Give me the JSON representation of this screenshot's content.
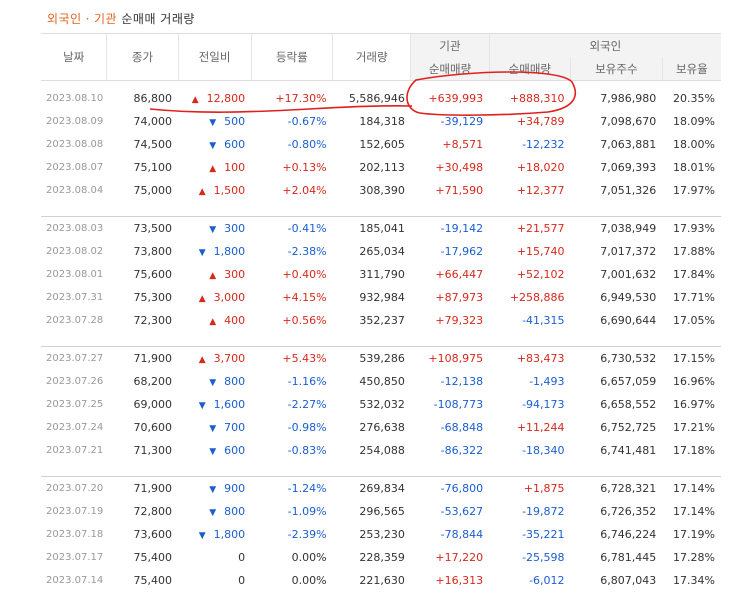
{
  "page": {
    "title_part1": "외국인",
    "title_dot": "·",
    "title_part2": "기관",
    "title_part3": "순매매 거래량"
  },
  "headers": {
    "date": "날짜",
    "close": "종가",
    "change": "전일비",
    "rate": "등락률",
    "volume": "거래량",
    "institution": "기관",
    "foreign": "외국인",
    "inst_net": "순매매량",
    "for_net": "순매매량",
    "shares_held": "보유주수",
    "hold_ratio": "보유율"
  },
  "colors": {
    "up": "#d6291c",
    "down": "#1b5ed0",
    "annotation": "#e0201c"
  },
  "groups": [
    [
      {
        "date": "2023.08.10",
        "close": "86,800",
        "dir": "up",
        "change": "12,800",
        "rate": "+17.30%",
        "volume": "5,586,946",
        "inst": "+639,993",
        "foreign": "+888,310",
        "held": "7,986,980",
        "ratio": "20.35%"
      },
      {
        "date": "2023.08.09",
        "close": "74,000",
        "dir": "down",
        "change": "500",
        "rate": "-0.67%",
        "volume": "184,318",
        "inst": "-39,129",
        "foreign": "+34,789",
        "held": "7,098,670",
        "ratio": "18.09%"
      },
      {
        "date": "2023.08.08",
        "close": "74,500",
        "dir": "down",
        "change": "600",
        "rate": "-0.80%",
        "volume": "152,605",
        "inst": "+8,571",
        "foreign": "-12,232",
        "held": "7,063,881",
        "ratio": "18.00%"
      },
      {
        "date": "2023.08.07",
        "close": "75,100",
        "dir": "up",
        "change": "100",
        "rate": "+0.13%",
        "volume": "202,113",
        "inst": "+30,498",
        "foreign": "+18,020",
        "held": "7,069,393",
        "ratio": "18.01%"
      },
      {
        "date": "2023.08.04",
        "close": "75,000",
        "dir": "up",
        "change": "1,500",
        "rate": "+2.04%",
        "volume": "308,390",
        "inst": "+71,590",
        "foreign": "+12,377",
        "held": "7,051,326",
        "ratio": "17.97%"
      }
    ],
    [
      {
        "date": "2023.08.03",
        "close": "73,500",
        "dir": "down",
        "change": "300",
        "rate": "-0.41%",
        "volume": "185,041",
        "inst": "-19,142",
        "foreign": "+21,577",
        "held": "7,038,949",
        "ratio": "17.93%"
      },
      {
        "date": "2023.08.02",
        "close": "73,800",
        "dir": "down",
        "change": "1,800",
        "rate": "-2.38%",
        "volume": "265,034",
        "inst": "-17,962",
        "foreign": "+15,740",
        "held": "7,017,372",
        "ratio": "17.88%"
      },
      {
        "date": "2023.08.01",
        "close": "75,600",
        "dir": "up",
        "change": "300",
        "rate": "+0.40%",
        "volume": "311,790",
        "inst": "+66,447",
        "foreign": "+52,102",
        "held": "7,001,632",
        "ratio": "17.84%"
      },
      {
        "date": "2023.07.31",
        "close": "75,300",
        "dir": "up",
        "change": "3,000",
        "rate": "+4.15%",
        "volume": "932,984",
        "inst": "+87,973",
        "foreign": "+258,886",
        "held": "6,949,530",
        "ratio": "17.71%"
      },
      {
        "date": "2023.07.28",
        "close": "72,300",
        "dir": "up",
        "change": "400",
        "rate": "+0.56%",
        "volume": "352,237",
        "inst": "+79,323",
        "foreign": "-41,315",
        "held": "6,690,644",
        "ratio": "17.05%"
      }
    ],
    [
      {
        "date": "2023.07.27",
        "close": "71,900",
        "dir": "up",
        "change": "3,700",
        "rate": "+5.43%",
        "volume": "539,286",
        "inst": "+108,975",
        "foreign": "+83,473",
        "held": "6,730,532",
        "ratio": "17.15%"
      },
      {
        "date": "2023.07.26",
        "close": "68,200",
        "dir": "down",
        "change": "800",
        "rate": "-1.16%",
        "volume": "450,850",
        "inst": "-12,138",
        "foreign": "-1,493",
        "held": "6,657,059",
        "ratio": "16.96%"
      },
      {
        "date": "2023.07.25",
        "close": "69,000",
        "dir": "down",
        "change": "1,600",
        "rate": "-2.27%",
        "volume": "532,032",
        "inst": "-108,773",
        "foreign": "-94,173",
        "held": "6,658,552",
        "ratio": "16.97%"
      },
      {
        "date": "2023.07.24",
        "close": "70,600",
        "dir": "down",
        "change": "700",
        "rate": "-0.98%",
        "volume": "276,638",
        "inst": "-68,848",
        "foreign": "+11,244",
        "held": "6,752,725",
        "ratio": "17.21%"
      },
      {
        "date": "2023.07.21",
        "close": "71,300",
        "dir": "down",
        "change": "600",
        "rate": "-0.83%",
        "volume": "254,088",
        "inst": "-86,322",
        "foreign": "-18,340",
        "held": "6,741,481",
        "ratio": "17.18%"
      }
    ],
    [
      {
        "date": "2023.07.20",
        "close": "71,900",
        "dir": "down",
        "change": "900",
        "rate": "-1.24%",
        "volume": "269,834",
        "inst": "-76,800",
        "foreign": "+1,875",
        "held": "6,728,321",
        "ratio": "17.14%"
      },
      {
        "date": "2023.07.19",
        "close": "72,800",
        "dir": "down",
        "change": "800",
        "rate": "-1.09%",
        "volume": "296,565",
        "inst": "-53,627",
        "foreign": "-19,872",
        "held": "6,726,352",
        "ratio": "17.14%"
      },
      {
        "date": "2023.07.18",
        "close": "73,600",
        "dir": "down",
        "change": "1,800",
        "rate": "-2.39%",
        "volume": "253,230",
        "inst": "-78,844",
        "foreign": "-35,221",
        "held": "6,746,224",
        "ratio": "17.19%"
      },
      {
        "date": "2023.07.17",
        "close": "75,400",
        "dir": "none",
        "change": "0",
        "rate": "0.00%",
        "volume": "228,359",
        "inst": "+17,220",
        "foreign": "-25,598",
        "held": "6,781,445",
        "ratio": "17.28%"
      },
      {
        "date": "2023.07.14",
        "close": "75,400",
        "dir": "none",
        "change": "0",
        "rate": "0.00%",
        "volume": "221,630",
        "inst": "+16,313",
        "foreign": "-6,012",
        "held": "6,807,043",
        "ratio": "17.34%"
      }
    ]
  ]
}
